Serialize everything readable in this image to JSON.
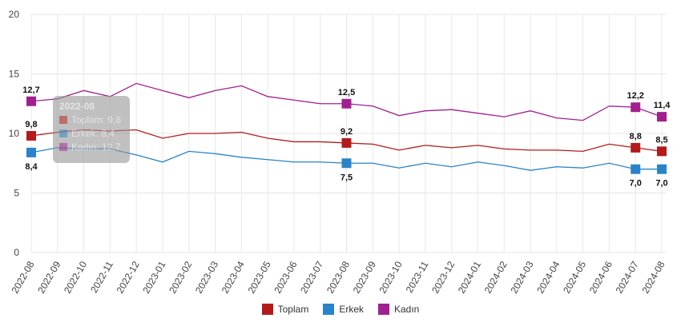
{
  "chart_data": {
    "type": "line",
    "x": [
      "2022-08",
      "2022-09",
      "2022-10",
      "2022-11",
      "2022-12",
      "2023-01",
      "2023-02",
      "2023-03",
      "2023-04",
      "2023-05",
      "2023-06",
      "2023-07",
      "2023-08",
      "2023-09",
      "2023-10",
      "2023-11",
      "2023-12",
      "2024-01",
      "2024-02",
      "2024-03",
      "2024-04",
      "2024-05",
      "2024-06",
      "2024-07",
      "2024-08"
    ],
    "ylim": [
      0,
      20
    ],
    "yticks": [
      0,
      5,
      10,
      15,
      20
    ],
    "grid": true,
    "legend_position": "bottom",
    "labeled_points": [
      0,
      12,
      23,
      24
    ],
    "series": [
      {
        "name": "Toplam",
        "color": "#b31b1b",
        "values": [
          9.8,
          10.1,
          10.3,
          10.2,
          10.3,
          9.6,
          10.0,
          10.0,
          10.1,
          9.6,
          9.3,
          9.3,
          9.2,
          9.1,
          8.6,
          9.0,
          8.8,
          9.0,
          8.7,
          8.6,
          8.6,
          8.5,
          9.1,
          8.8,
          8.5
        ],
        "label_pos": "above"
      },
      {
        "name": "Erkek",
        "color": "#2a83c8",
        "values": [
          8.4,
          8.8,
          8.7,
          8.7,
          8.2,
          7.6,
          8.5,
          8.3,
          8.0,
          7.8,
          7.6,
          7.6,
          7.5,
          7.5,
          7.1,
          7.5,
          7.2,
          7.6,
          7.3,
          6.9,
          7.2,
          7.1,
          7.5,
          7.0,
          7.0
        ],
        "label_pos": "below"
      },
      {
        "name": "Kadın",
        "color": "#a0208f",
        "values": [
          12.7,
          12.9,
          13.6,
          13.1,
          14.2,
          13.6,
          13.0,
          13.6,
          14.0,
          13.1,
          12.8,
          12.5,
          12.5,
          12.3,
          11.5,
          11.9,
          12.0,
          11.7,
          11.4,
          11.9,
          11.3,
          11.1,
          12.3,
          12.2,
          11.4
        ],
        "label_pos": "above"
      }
    ],
    "tooltip": {
      "title": "2022-08",
      "rows": [
        "Toplam: 9,8",
        "Erkek: 8,4",
        "Kadın: 12,7"
      ]
    }
  }
}
